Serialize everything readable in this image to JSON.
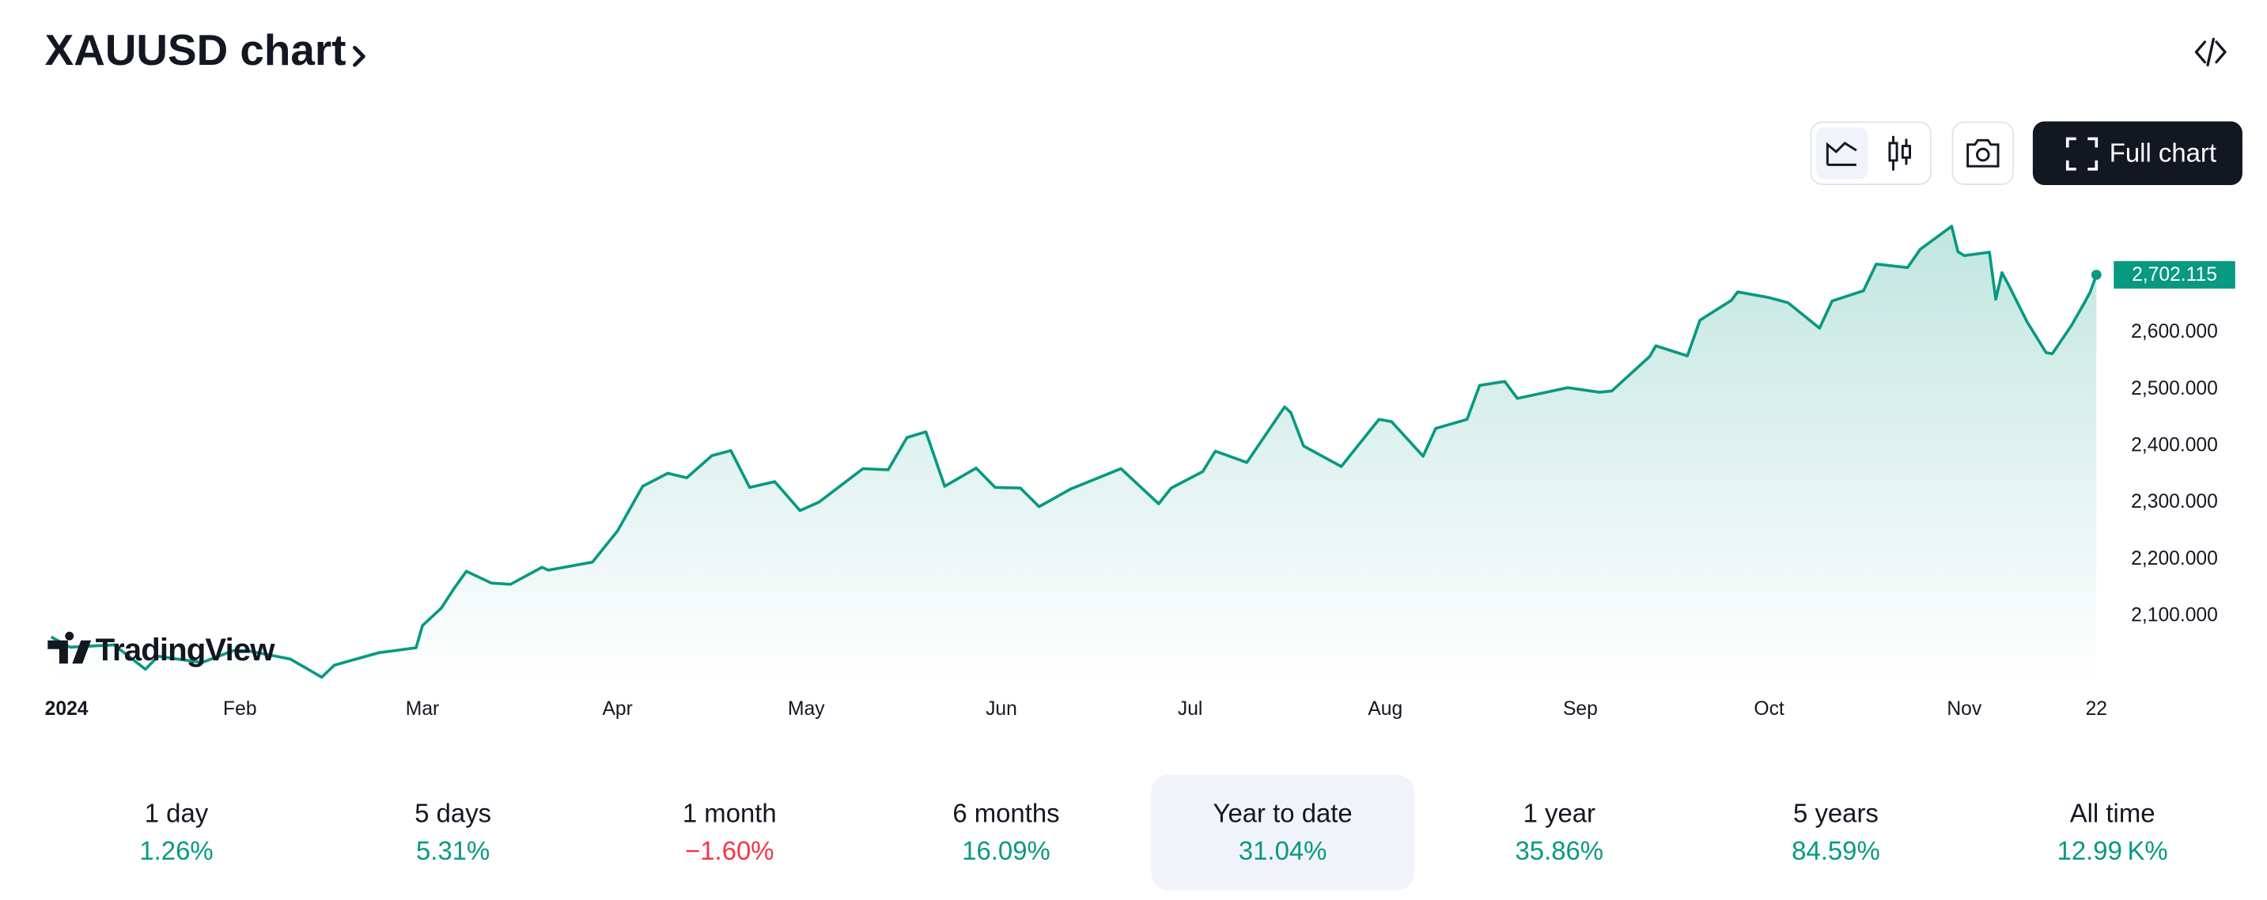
{
  "header": {
    "title": "XAUUSD chart",
    "button": "Full chart"
  },
  "chart_data": {
    "type": "line",
    "watermark": "TradingView",
    "x": [
      1,
      4,
      11,
      16,
      18,
      25,
      30,
      32,
      39,
      44,
      46,
      53,
      59,
      60,
      63,
      65,
      67,
      71,
      74,
      79,
      80,
      87,
      91,
      95,
      99,
      102,
      106,
      109,
      112,
      116,
      120,
      123,
      130,
      134,
      137,
      140,
      143,
      148,
      151,
      155,
      158,
      163,
      165,
      171,
      177,
      179,
      184,
      186,
      191,
      197,
      198,
      200,
      206,
      212,
      214,
      219,
      221,
      226,
      228,
      232,
      234,
      242,
      247,
      249,
      255,
      256,
      261,
      263,
      268,
      269,
      274,
      277,
      282,
      284,
      289,
      291,
      296,
      298,
      303,
      304,
      305,
      309,
      310,
      311,
      312,
      315,
      318,
      319,
      322,
      324,
      325,
      326
    ],
    "values": [
      2063,
      2045,
      2049,
      2006,
      2029,
      2018,
      2039,
      2039,
      2024,
      1992,
      2013,
      2035,
      2044,
      2083,
      2114,
      2148,
      2179,
      2158,
      2156,
      2186,
      2181,
      2195,
      2250,
      2329,
      2352,
      2344,
      2383,
      2392,
      2327,
      2337,
      2286,
      2301,
      2360,
      2358,
      2415,
      2425,
      2329,
      2361,
      2327,
      2326,
      2293,
      2324,
      2333,
      2360,
      2298,
      2326,
      2355,
      2391,
      2371,
      2469,
      2459,
      2400,
      2364,
      2447,
      2443,
      2382,
      2431,
      2447,
      2507,
      2514,
      2484,
      2503,
      2495,
      2497,
      2558,
      2577,
      2559,
      2622,
      2657,
      2672,
      2662,
      2653,
      2608,
      2656,
      2674,
      2721,
      2715,
      2747,
      2788,
      2743,
      2736,
      2742,
      2659,
      2706,
      2685,
      2619,
      2565,
      2563,
      2612,
      2651,
      2671,
      2702.115
    ],
    "color": "#089981",
    "price_label": {
      "value": 2702.115,
      "label": "2,702.115"
    },
    "xlim": [
      0,
      326
    ],
    "xticks": [
      {
        "value": 0,
        "label": "2024"
      },
      {
        "value": 31,
        "label": "Feb"
      },
      {
        "value": 60,
        "label": "Mar"
      },
      {
        "value": 91,
        "label": "Apr"
      },
      {
        "value": 121,
        "label": "May"
      },
      {
        "value": 152,
        "label": "Jun"
      },
      {
        "value": 182,
        "label": "Jul"
      },
      {
        "value": 213,
        "label": "Aug"
      },
      {
        "value": 244,
        "label": "Sep"
      },
      {
        "value": 274,
        "label": "Oct"
      },
      {
        "value": 305,
        "label": "Nov"
      },
      {
        "value": 326,
        "label": "22"
      }
    ],
    "ylim": [
      1983,
      2830
    ],
    "yticks": [
      {
        "value": 2100,
        "label": "2,100.000"
      },
      {
        "value": 2200,
        "label": "2,200.000"
      },
      {
        "value": 2300,
        "label": "2,300.000"
      },
      {
        "value": 2400,
        "label": "2,400.000"
      },
      {
        "value": 2500,
        "label": "2,500.000"
      },
      {
        "value": 2600,
        "label": "2,600.000"
      }
    ],
    "grid": false
  },
  "periods": {
    "selected": 4,
    "items": [
      {
        "label": "1 day",
        "change": "1.26%",
        "color": "#089981"
      },
      {
        "label": "5 days",
        "change": "5.31%",
        "color": "#089981"
      },
      {
        "label": "1 month",
        "change": "−1.60%",
        "color": "#f23645"
      },
      {
        "label": "6 months",
        "change": "16.09%",
        "color": "#089981"
      },
      {
        "label": "Year to date",
        "change": "31.04%",
        "color": "#089981"
      },
      {
        "label": "1 year",
        "change": "35.86%",
        "color": "#089981"
      },
      {
        "label": "5 years",
        "change": "84.59%",
        "color": "#089981"
      },
      {
        "label": "All time",
        "change": "12.99 K%",
        "color": "#089981"
      }
    ]
  }
}
